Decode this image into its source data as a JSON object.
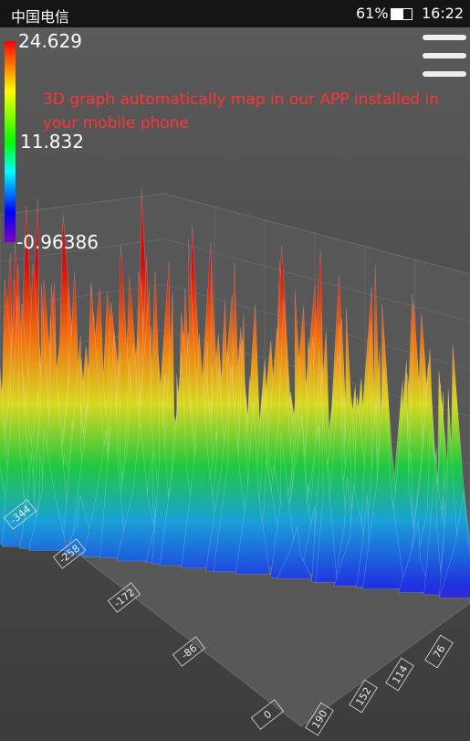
{
  "status_bar": {
    "carrier": "中国电信",
    "battery": "61%",
    "time": "16:22"
  },
  "colorbar": {
    "max": "24.629",
    "mid": "11.832",
    "min": "-0.96386"
  },
  "annotation": "3D graph automatically map in our APP installed in your mobile phone",
  "axes": {
    "left_ticks": [
      "-344",
      "-258",
      "-172",
      "-86",
      "0"
    ],
    "right_ticks": [
      "190",
      "152",
      "114",
      "76"
    ]
  }
}
